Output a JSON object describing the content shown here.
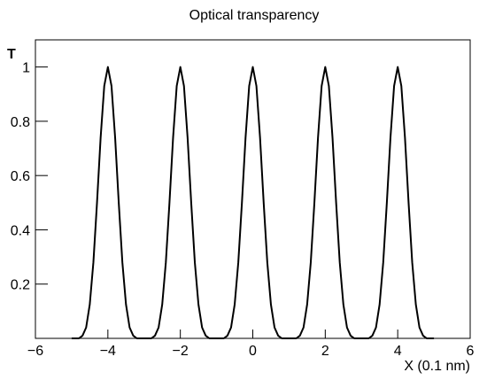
{
  "chart_data": {
    "type": "line",
    "title": "Optical transparency",
    "x_label": "X (0.1 nm)",
    "y_label": "T",
    "x": [
      -5,
      -4.9,
      -4.8,
      -4.7,
      -4.6,
      -4.5,
      -4.4,
      -4.3,
      -4.2,
      -4.1,
      -4,
      -3.9,
      -3.8,
      -3.7,
      -3.6,
      -3.5,
      -3.4,
      -3.3,
      -3.2,
      -3.1,
      -3,
      -2.9,
      -2.8,
      -2.7,
      -2.6,
      -2.5,
      -2.4,
      -2.3,
      -2.2,
      -2.1,
      -2,
      -1.9,
      -1.8,
      -1.7,
      -1.6,
      -1.5,
      -1.4,
      -1.3,
      -1.2,
      -1.1,
      -1,
      -0.9,
      -0.8,
      -0.7,
      -0.6,
      -0.5,
      -0.4,
      -0.3,
      -0.2,
      -0.1,
      0,
      0.1,
      0.2,
      0.3,
      0.4,
      0.5,
      0.6,
      0.7,
      0.8,
      0.9,
      1,
      1.1,
      1.2,
      1.3,
      1.4,
      1.5,
      1.6,
      1.7,
      1.8,
      1.9,
      2,
      2.1,
      2.2,
      2.3,
      2.4,
      2.5,
      2.6,
      2.7,
      2.8,
      2.9,
      3,
      3.1,
      3.2,
      3.3,
      3.4,
      3.5,
      3.6,
      3.7,
      3.8,
      3.9,
      4,
      4.1,
      4.2,
      4.3,
      4.4,
      4.5,
      4.6,
      4.7,
      4.8,
      4.9,
      5
    ],
    "values": [
      0,
      0,
      0,
      0.01,
      0.04,
      0.125,
      0.28,
      0.5,
      0.74,
      0.93,
      1,
      0.93,
      0.74,
      0.5,
      0.28,
      0.125,
      0.04,
      0.01,
      0,
      0,
      0,
      0,
      0,
      0.01,
      0.04,
      0.125,
      0.28,
      0.5,
      0.74,
      0.93,
      1,
      0.93,
      0.74,
      0.5,
      0.28,
      0.125,
      0.04,
      0.01,
      0,
      0,
      0,
      0,
      0,
      0.01,
      0.04,
      0.125,
      0.28,
      0.5,
      0.74,
      0.93,
      1,
      0.93,
      0.74,
      0.5,
      0.28,
      0.125,
      0.04,
      0.01,
      0,
      0,
      0,
      0,
      0,
      0.01,
      0.04,
      0.125,
      0.28,
      0.5,
      0.74,
      0.93,
      1,
      0.93,
      0.74,
      0.5,
      0.28,
      0.125,
      0.04,
      0.01,
      0,
      0,
      0,
      0,
      0,
      0.01,
      0.04,
      0.125,
      0.28,
      0.5,
      0.74,
      0.93,
      1,
      0.93,
      0.74,
      0.5,
      0.28,
      0.125,
      0.04,
      0.01,
      0,
      0,
      0
    ],
    "color": "#000000",
    "xlim": [
      -6,
      6
    ],
    "xticks": [
      {
        "value": -6,
        "label": "−6"
      },
      {
        "value": -4,
        "label": "−4"
      },
      {
        "value": -2,
        "label": "−2"
      },
      0,
      2,
      4,
      6
    ],
    "ylim": [
      0,
      1.1
    ],
    "yticks": [
      0.2,
      0.4,
      0.6,
      0.8,
      1
    ]
  }
}
